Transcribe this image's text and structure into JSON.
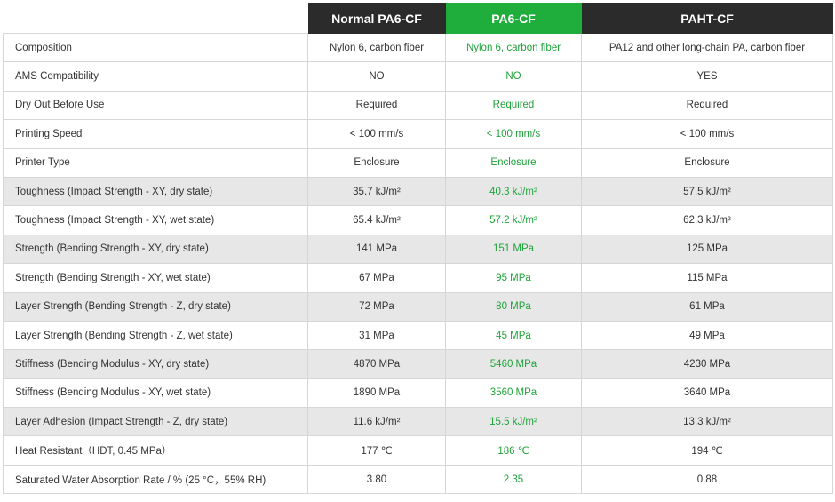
{
  "header": {
    "columns": [
      "",
      "Normal PA6-CF",
      "PA6-CF",
      "PAHT-CF"
    ]
  },
  "rows": [
    {
      "label": "Composition",
      "values": [
        "Nylon 6, carbon fiber",
        "Nylon 6, carbon fiber",
        "PA12 and other long-chain PA, carbon fiber"
      ],
      "shaded": false
    },
    {
      "label": "AMS Compatibility",
      "values": [
        "NO",
        "NO",
        "YES"
      ],
      "shaded": false
    },
    {
      "label": "Dry Out Before Use",
      "values": [
        "Required",
        "Required",
        "Required"
      ],
      "shaded": false
    },
    {
      "label": "Printing Speed",
      "values": [
        "< 100 mm/s",
        "< 100 mm/s",
        "< 100 mm/s"
      ],
      "shaded": false
    },
    {
      "label": "Printer Type",
      "values": [
        "Enclosure",
        "Enclosure",
        "Enclosure"
      ],
      "shaded": false
    },
    {
      "label": "Toughness (Impact Strength - XY, dry state)",
      "values": [
        "35.7 kJ/m²",
        "40.3 kJ/m²",
        "57.5 kJ/m²"
      ],
      "shaded": true
    },
    {
      "label": "Toughness (Impact Strength - XY, wet state)",
      "values": [
        "65.4 kJ/m²",
        "57.2 kJ/m²",
        "62.3 kJ/m²"
      ],
      "shaded": false
    },
    {
      "label": "Strength (Bending Strength - XY, dry state)",
      "values": [
        "141 MPa",
        "151 MPa",
        "125 MPa"
      ],
      "shaded": true
    },
    {
      "label": "Strength (Bending Strength - XY, wet state)",
      "values": [
        "67 MPa",
        "95 MPa",
        "115 MPa"
      ],
      "shaded": false
    },
    {
      "label": "Layer Strength (Bending Strength - Z, dry state)",
      "values": [
        "72 MPa",
        "80 MPa",
        "61 MPa"
      ],
      "shaded": true
    },
    {
      "label": "Layer Strength (Bending Strength - Z, wet state)",
      "values": [
        "31 MPa",
        "45 MPa",
        "49 MPa"
      ],
      "shaded": false
    },
    {
      "label": "Stiffness (Bending Modulus - XY, dry state)",
      "values": [
        "4870 MPa",
        "5460 MPa",
        "4230 MPa"
      ],
      "shaded": true
    },
    {
      "label": "Stiffness (Bending Modulus - XY, wet state)",
      "values": [
        "1890 MPa",
        "3560 MPa",
        "3640 MPa"
      ],
      "shaded": false
    },
    {
      "label": "Layer Adhesion (Impact Strength - Z, dry state)",
      "values": [
        "11.6 kJ/m²",
        "15.5 kJ/m²",
        "13.3 kJ/m²"
      ],
      "shaded": true
    },
    {
      "label": "Heat Resistant（HDT, 0.45 MPa）",
      "values": [
        "177 ℃",
        "186 ℃",
        "194 ℃"
      ],
      "shaded": false
    },
    {
      "label": "Saturated Water Absorption Rate / % (25 °C，55% RH)",
      "values": [
        "3.80",
        "2.35",
        "0.88"
      ],
      "shaded": false
    }
  ]
}
